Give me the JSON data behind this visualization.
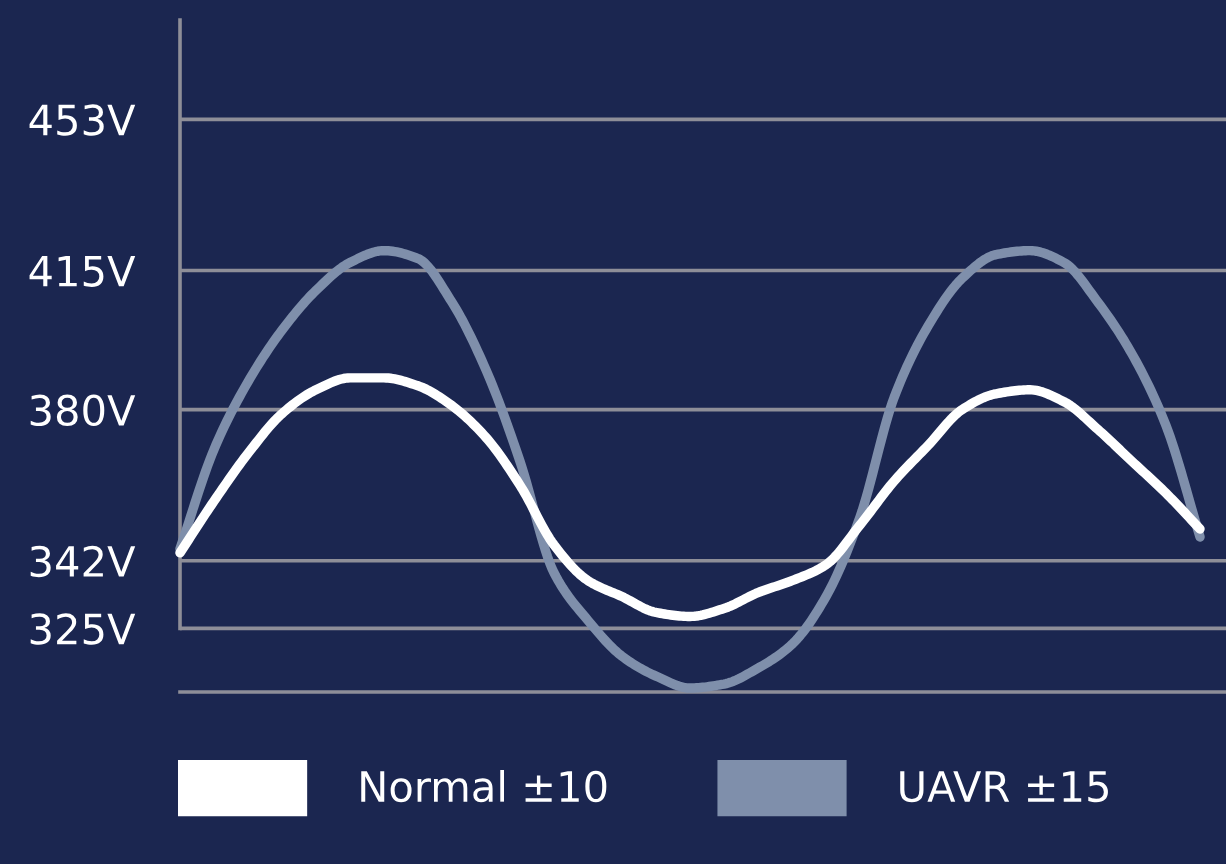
{
  "chart_data": {
    "type": "line",
    "categories": [
      null,
      null,
      null,
      null,
      null,
      null,
      null,
      null,
      null,
      null,
      null,
      null,
      null,
      null,
      null,
      null,
      null,
      null,
      null,
      null,
      null,
      null,
      null,
      null,
      null,
      null,
      null,
      null,
      null,
      null,
      null
    ],
    "series": [
      {
        "name": "Normal ±10",
        "color": "#ffffff",
        "values": [
          344,
          357,
          369,
          379,
          385,
          388,
          388,
          386,
          381,
          373,
          361,
          346,
          337,
          333,
          329,
          328,
          330,
          334,
          337,
          341,
          351,
          362,
          371,
          380,
          384,
          385,
          382,
          375,
          367,
          359,
          350
        ]
      },
      {
        "name": "UAVR ±15",
        "color": "#7f8fab",
        "values": [
          345,
          370,
          387,
          400,
          410,
          417,
          420,
          418,
          407,
          390,
          367,
          339,
          327,
          318,
          313,
          310,
          311,
          315,
          321,
          333,
          353,
          383,
          401,
          413,
          419,
          420,
          417,
          407,
          394,
          376,
          348
        ]
      }
    ],
    "ylim": [
      309,
      478
    ],
    "yticks": [
      {
        "value": 453,
        "label": "453V"
      },
      {
        "value": 415,
        "label": "415V"
      },
      {
        "value": 380,
        "label": "380V"
      },
      {
        "value": 342,
        "label": "342V"
      },
      {
        "value": 325,
        "label": "325V"
      }
    ],
    "grid": "y",
    "legend": "bottom",
    "line_style": "solid"
  }
}
